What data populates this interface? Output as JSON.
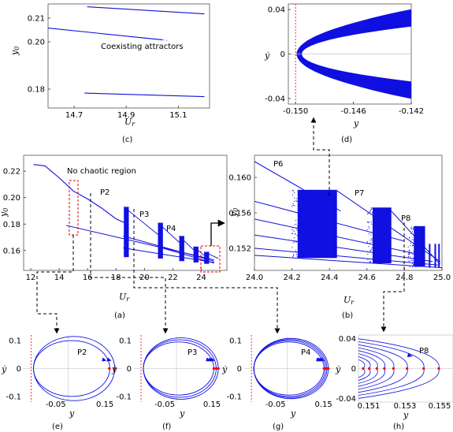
{
  "chart_data": [
    {
      "panel": "(c)",
      "type": "scatter",
      "xlabel": "U_r",
      "ylabel": "y_0",
      "xlim": [
        14.6,
        15.22
      ],
      "ylim": [
        0.172,
        0.216
      ],
      "xticks": [
        "14.7",
        "14.9",
        "15.1"
      ],
      "yticks": [
        "0.21",
        "0.20",
        "0.18"
      ],
      "ytick_values": [
        0.21,
        0.2,
        0.18
      ],
      "xtick_values": [
        14.7,
        14.9,
        15.1
      ],
      "annotation": "Coexisting attractors",
      "branches": [
        {
          "x": [
            14.75,
            15.2
          ],
          "y": [
            0.2148,
            0.2118
          ],
          "style": "solid"
        },
        {
          "x": [
            14.6,
            15.04
          ],
          "y": [
            0.2058,
            0.2008
          ],
          "style": "solid"
        },
        {
          "x": [
            14.74,
            15.2
          ],
          "y": [
            0.1783,
            0.1768
          ],
          "style": "solid"
        }
      ]
    },
    {
      "panel": "(d)",
      "type": "line",
      "xlabel": "y",
      "ylabel": "ẏ",
      "xlim": [
        -0.1505,
        -0.142
      ],
      "ylim": [
        -0.045,
        0.045
      ],
      "xticks": [
        "-0.150",
        "-0.146",
        "-0.142"
      ],
      "yticks": [
        "0.04",
        "0",
        "-0.04"
      ],
      "xtick_values": [
        -0.15,
        -0.146,
        -0.142
      ],
      "ytick_values": [
        0.04,
        0,
        -0.04
      ],
      "vline": -0.15,
      "description_orbits": {
        "vertex_y": -0.1499,
        "edge_y": -0.142,
        "ydot_max": [
          0.025,
          0.04
        ]
      }
    },
    {
      "panel": "(a)",
      "type": "scatter",
      "xlabel": "U_r",
      "ylabel": "y_0",
      "xlim": [
        11.5,
        25.8
      ],
      "ylim": [
        0.145,
        0.232
      ],
      "xticks": [
        "12",
        "14",
        "16",
        "18",
        "20",
        "22",
        "24"
      ],
      "xtick_values": [
        12,
        14,
        16,
        18,
        20,
        22,
        24
      ],
      "yticks": [
        "0.22",
        "0.20",
        "0.18",
        "0.16"
      ],
      "ytick_values": [
        0.22,
        0.2,
        0.18,
        0.16
      ],
      "annotation": "No chaotic region",
      "labels": [
        {
          "text": "P2",
          "x": 16.0,
          "y": 0.1975
        },
        {
          "text": "P3",
          "x": 19.5,
          "y": 0.1905
        },
        {
          "text": "P4",
          "x": 21.6,
          "y": 0.1785
        }
      ],
      "upper_branch": {
        "x": [
          12.2,
          13.0,
          14.0,
          15.0,
          16.0,
          17.0,
          18.0,
          18.6
        ],
        "y": [
          0.225,
          0.224,
          0.215,
          0.205,
          0.199,
          0.192,
          0.184,
          0.181
        ]
      },
      "period_windows": [
        {
          "start": 18.55,
          "top": 0.193,
          "low": 0.155
        },
        {
          "start": 20.95,
          "top": 0.181,
          "low": 0.154
        },
        {
          "start": 22.45,
          "top": 0.171,
          "low": 0.152
        },
        {
          "start": 23.45,
          "top": 0.163,
          "low": 0.151
        },
        {
          "start": 24.2,
          "top": 0.159,
          "low": 0.15
        }
      ]
    },
    {
      "panel": "(b)",
      "type": "scatter",
      "xlabel": "U_r",
      "ylabel": "y_0",
      "xlim": [
        24.0,
        25.0
      ],
      "ylim": [
        0.1495,
        0.1625
      ],
      "xticks": [
        "24.0",
        "24.2",
        "24.4",
        "24.6",
        "24.8",
        "25.0"
      ],
      "xtick_values": [
        24.0,
        24.2,
        24.4,
        24.6,
        24.8,
        25.0
      ],
      "yticks": [
        "0.160",
        "0.156",
        "0.152"
      ],
      "ytick_values": [
        0.16,
        0.156,
        0.152
      ],
      "labels": [
        {
          "text": "P6",
          "x": 24.05,
          "y": 0.1613
        },
        {
          "text": "P7",
          "x": 24.52,
          "y": 0.1583
        },
        {
          "text": "P8",
          "x": 24.75,
          "y": 0.1546
        }
      ],
      "chaotic_bands": [
        {
          "x0": 24.2,
          "x1": 24.44,
          "top": 0.1586,
          "low": 0.1509
        },
        {
          "x0": 24.6,
          "x1": 24.73,
          "top": 0.1566,
          "low": 0.1503
        },
        {
          "x0": 24.82,
          "x1": 24.91,
          "top": 0.1545,
          "low": 0.1499
        }
      ]
    },
    {
      "panel": "(e)",
      "type": "line",
      "xlabel": "y",
      "ylabel": "ẏ",
      "xlim": [
        -0.18,
        0.22
      ],
      "ylim": [
        -0.12,
        0.12
      ],
      "xticks": [
        "-0.05",
        "0.15"
      ],
      "xtick_values": [
        -0.05,
        0.15
      ],
      "yticks": [
        "0.1",
        "0",
        "-0.1"
      ],
      "ytick_values": [
        0.1,
        0,
        -0.1
      ],
      "label": "P2",
      "vline": -0.15,
      "orbits": [
        {
          "a": 0.17,
          "ydot": 0.1
        },
        {
          "a": 0.19,
          "ydot": 0.115
        }
      ],
      "poincare": [
        0.168,
        0.19
      ]
    },
    {
      "panel": "(f)",
      "type": "line",
      "xlabel": "y",
      "ylabel": "ẏ",
      "xlim": [
        -0.18,
        0.22
      ],
      "ylim": [
        -0.12,
        0.12
      ],
      "xticks": [
        "-0.05",
        "0.15"
      ],
      "xtick_values": [
        -0.05,
        0.15
      ],
      "yticks": [
        "0.1",
        "0",
        "-0.1"
      ],
      "ytick_values": [
        0.1,
        0,
        -0.1
      ],
      "label": "P3",
      "vline": -0.15,
      "orbits": [
        {
          "a": 0.158,
          "ydot": 0.095
        },
        {
          "a": 0.168,
          "ydot": 0.103
        },
        {
          "a": 0.177,
          "ydot": 0.11
        }
      ],
      "poincare": [
        0.158,
        0.168,
        0.177
      ]
    },
    {
      "panel": "(g)",
      "type": "line",
      "xlabel": "y",
      "ylabel": "ẏ",
      "xlim": [
        -0.18,
        0.22
      ],
      "ylim": [
        -0.12,
        0.12
      ],
      "xticks": [
        "-0.05",
        "0.15"
      ],
      "xtick_values": [
        -0.05,
        0.15
      ],
      "yticks": [
        "0.1",
        "0",
        "-0.1"
      ],
      "ytick_values": [
        0.1,
        0,
        -0.1
      ],
      "label": "P4",
      "vline": -0.15,
      "orbits": [
        {
          "a": 0.152,
          "ydot": 0.095
        },
        {
          "a": 0.158,
          "ydot": 0.1
        },
        {
          "a": 0.164,
          "ydot": 0.104
        },
        {
          "a": 0.17,
          "ydot": 0.108
        }
      ],
      "poincare": [
        0.152,
        0.158,
        0.164,
        0.17
      ]
    },
    {
      "panel": "(h)",
      "type": "line",
      "xlabel": "y",
      "ylabel": "ẏ",
      "xlim": [
        -0.1498,
        0.1556
      ],
      "ylim": [
        -0.045,
        0.045
      ],
      "xticks": [
        "0.151",
        "0.153",
        "0.155"
      ],
      "xtick_values": [
        0.151,
        0.153,
        0.155
      ],
      "yticks": [
        "0.04",
        "0",
        "-0.04"
      ],
      "ytick_values": [
        0.04,
        0,
        -0.04
      ],
      "label": "P8",
      "poincare": [
        0.1502,
        0.1506,
        0.1511,
        0.1516,
        0.1522,
        0.1531,
        0.1542,
        0.1552
      ]
    }
  ]
}
